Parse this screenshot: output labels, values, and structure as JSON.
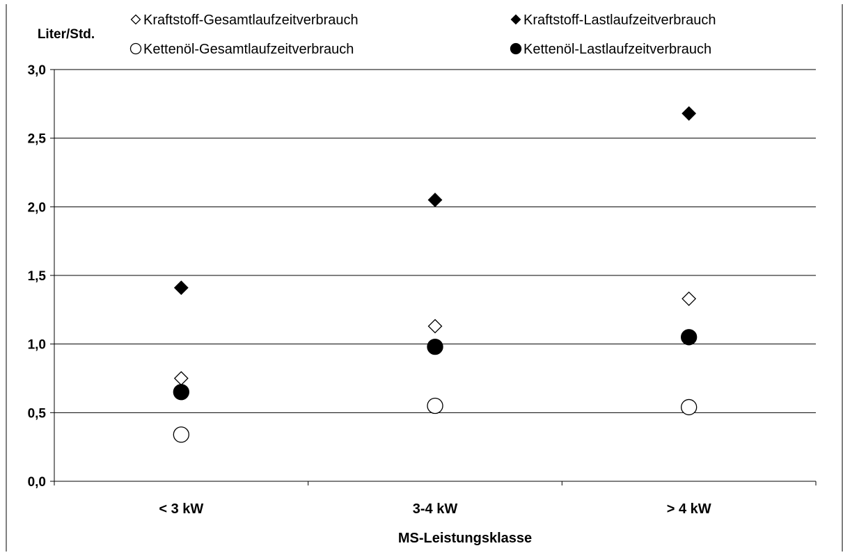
{
  "chart_data": {
    "type": "scatter",
    "title": "",
    "xlabel": "MS-Leistungsklasse",
    "ylabel": "Liter/Std.",
    "categories": [
      "< 3 kW",
      "3-4 kW",
      "> 4 kW"
    ],
    "ylim": [
      0,
      3
    ],
    "yticks": [
      "0,0",
      "0,5",
      "1,0",
      "1,5",
      "2,0",
      "2,5",
      "3,0"
    ],
    "grid": true,
    "legend_position": "top",
    "series": [
      {
        "name": "Kraftstoff-Gesamtlaufzeitverbrauch",
        "symbol": "◇",
        "marker": "diamond-open",
        "values": [
          0.75,
          1.13,
          1.33
        ]
      },
      {
        "name": "Kraftstoff-Lastlaufzeitverbrauch",
        "symbol": "◆",
        "marker": "diamond-filled",
        "values": [
          1.41,
          2.05,
          2.68
        ]
      },
      {
        "name": "Kettenöl-Gesamtlaufzeitverbrauch",
        "symbol": "○",
        "marker": "circle-open",
        "values": [
          0.34,
          0.55,
          0.54
        ]
      },
      {
        "name": "Kettenöl-Lastlaufzeitverbrauch",
        "symbol": "●",
        "marker": "circle-filled",
        "values": [
          0.65,
          0.98,
          1.05
        ]
      }
    ]
  }
}
